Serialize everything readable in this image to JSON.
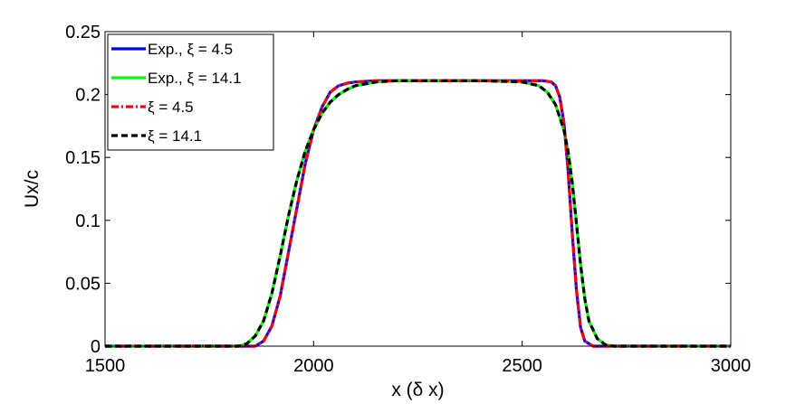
{
  "chart_data": {
    "type": "line",
    "title": "",
    "xlabel": "x (δ x)",
    "ylabel": "Ux/c",
    "xlim": [
      1500,
      3000
    ],
    "ylim": [
      0,
      0.25
    ],
    "xticks": [
      1500,
      2000,
      2500,
      3000
    ],
    "xtick_labels": [
      "1500",
      "2000",
      "2500",
      "3000"
    ],
    "yticks": [
      0,
      0.05,
      0.1,
      0.15,
      0.2,
      0.25
    ],
    "ytick_labels": [
      "0",
      "0.05",
      "0.1",
      "0.15",
      "0.2",
      "0.25"
    ],
    "grid": false,
    "legend_position": "top-left",
    "series": [
      {
        "name": "Exp., ξ = 4.5",
        "color": "#0000ff",
        "dash": "solid",
        "x": [
          1500,
          1860,
          1880,
          1900,
          1920,
          1940,
          1960,
          1980,
          2000,
          2020,
          2040,
          2060,
          2080,
          2100,
          2150,
          2200,
          2300,
          2400,
          2500,
          2550,
          2570,
          2580,
          2590,
          2600,
          2610,
          2620,
          2630,
          2640,
          2650,
          2670,
          2700,
          3000
        ],
        "y": [
          0,
          0,
          0.004,
          0.016,
          0.04,
          0.075,
          0.11,
          0.145,
          0.172,
          0.19,
          0.202,
          0.207,
          0.209,
          0.21,
          0.211,
          0.211,
          0.211,
          0.211,
          0.211,
          0.211,
          0.21,
          0.207,
          0.198,
          0.178,
          0.14,
          0.09,
          0.045,
          0.015,
          0.004,
          0,
          0,
          0
        ]
      },
      {
        "name": "Exp., ξ = 14.1",
        "color": "#00ff00",
        "dash": "solid",
        "x": [
          1500,
          1820,
          1840,
          1860,
          1880,
          1900,
          1920,
          1940,
          1960,
          1980,
          2000,
          2020,
          2040,
          2060,
          2080,
          2100,
          2150,
          2200,
          2300,
          2400,
          2500,
          2540,
          2560,
          2580,
          2600,
          2610,
          2620,
          2630,
          2640,
          2650,
          2660,
          2680,
          2700,
          2720,
          3000
        ],
        "y": [
          0,
          0,
          0.002,
          0.008,
          0.02,
          0.042,
          0.072,
          0.104,
          0.132,
          0.155,
          0.172,
          0.185,
          0.194,
          0.2,
          0.204,
          0.207,
          0.21,
          0.211,
          0.211,
          0.211,
          0.21,
          0.207,
          0.202,
          0.192,
          0.172,
          0.155,
          0.13,
          0.098,
          0.065,
          0.038,
          0.02,
          0.006,
          0.001,
          0,
          0
        ]
      },
      {
        "name": "ξ = 4.5",
        "color": "#ff0000",
        "dash": "dashdot",
        "x": [
          1500,
          1860,
          1880,
          1900,
          1920,
          1940,
          1960,
          1980,
          2000,
          2020,
          2040,
          2060,
          2080,
          2100,
          2150,
          2200,
          2300,
          2400,
          2500,
          2550,
          2570,
          2580,
          2590,
          2600,
          2610,
          2620,
          2630,
          2640,
          2650,
          2670,
          2700,
          3000
        ],
        "y": [
          0,
          0,
          0.004,
          0.016,
          0.04,
          0.075,
          0.11,
          0.145,
          0.172,
          0.19,
          0.202,
          0.207,
          0.209,
          0.21,
          0.211,
          0.211,
          0.211,
          0.211,
          0.211,
          0.211,
          0.21,
          0.207,
          0.198,
          0.178,
          0.14,
          0.09,
          0.045,
          0.015,
          0.004,
          0,
          0,
          0
        ]
      },
      {
        "name": "ξ = 14.1",
        "color": "#000000",
        "dash": "dashed",
        "x": [
          1500,
          1820,
          1840,
          1860,
          1880,
          1900,
          1920,
          1940,
          1960,
          1980,
          2000,
          2020,
          2040,
          2060,
          2080,
          2100,
          2150,
          2200,
          2300,
          2400,
          2500,
          2540,
          2560,
          2580,
          2600,
          2610,
          2620,
          2630,
          2640,
          2650,
          2660,
          2680,
          2700,
          2720,
          3000
        ],
        "y": [
          0,
          0,
          0.002,
          0.008,
          0.02,
          0.042,
          0.072,
          0.104,
          0.132,
          0.155,
          0.172,
          0.185,
          0.194,
          0.2,
          0.204,
          0.207,
          0.21,
          0.211,
          0.211,
          0.211,
          0.21,
          0.207,
          0.202,
          0.192,
          0.172,
          0.155,
          0.13,
          0.098,
          0.065,
          0.038,
          0.02,
          0.006,
          0.001,
          0,
          0
        ]
      }
    ]
  }
}
